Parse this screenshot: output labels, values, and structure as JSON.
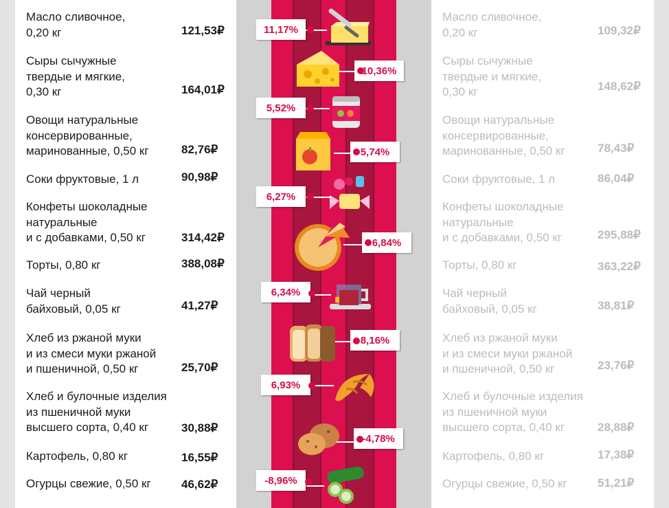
{
  "colors": {
    "accent": "#d70b48",
    "band": "#dc0f4f",
    "band_dark": "#a8153f",
    "gutter": "#d2d2d2",
    "text": "#1b1b1b",
    "text_faded": "#bcbcbc"
  },
  "items": [
    {
      "name": "Масло сливочное,\n0,20 кг",
      "price_left": "121,53₽",
      "price_right": "109,32₽",
      "change": "11,17%",
      "icon": "butter-icon"
    },
    {
      "name": "Сыры сычужные\nтвердые и мягкие,\n0,30 кг",
      "price_left": "164,01₽",
      "price_right": "148,62₽",
      "change": "10,36%",
      "icon": "cheese-icon"
    },
    {
      "name": "Овощи натуральные\nконсервированные,\nмаринованные, 0,50 кг",
      "price_left": "82,76₽",
      "price_right": "78,43₽",
      "change": "5,52%",
      "icon": "canned-vegetables-icon"
    },
    {
      "name": "Соки фруктовые, 1 л",
      "price_left": "90,98₽",
      "price_right": "86,04₽",
      "change": "5,74%",
      "icon": "juice-box-icon"
    },
    {
      "name": "Конфеты шоколадные\nнатуральные\nи с добавками, 0,50 кг",
      "price_left": "314,42₽",
      "price_right": "295,88₽",
      "change": "6,27%",
      "icon": "candy-icon"
    },
    {
      "name": "Торты, 0,80 кг",
      "price_left": "388,08₽",
      "price_right": "363,22₽",
      "change": "6,84%",
      "icon": "pie-icon"
    },
    {
      "name": "Чай черный\nбайховый, 0,05 кг",
      "price_left": "41,27₽",
      "price_right": "38,81₽",
      "change": "6,34%",
      "icon": "tea-cup-icon"
    },
    {
      "name": "Хлеб из ржаной муки\nи из смеси муки ржаной\nи пшеничной, 0,50 кг",
      "price_left": "25,70₽",
      "price_right": "23,76₽",
      "change": "8,16%",
      "icon": "bread-icon"
    },
    {
      "name": "Хлеб и булочные изделия\nиз пшеничной муки\nвысшего сорта, 0,40 кг",
      "price_left": "30,88₽",
      "price_right": "28,88₽",
      "change": "6,93%",
      "icon": "croissant-icon"
    },
    {
      "name": "Картофель, 0,80 кг",
      "price_left": "16,55₽",
      "price_right": "17,38₽",
      "change": "-4,78%",
      "icon": "potato-icon"
    },
    {
      "name": "Огурцы свежие, 0,50 кг",
      "price_left": "46,62₽",
      "price_right": "51,21₽",
      "change": "-8,96%",
      "icon": "cucumber-icon"
    }
  ]
}
